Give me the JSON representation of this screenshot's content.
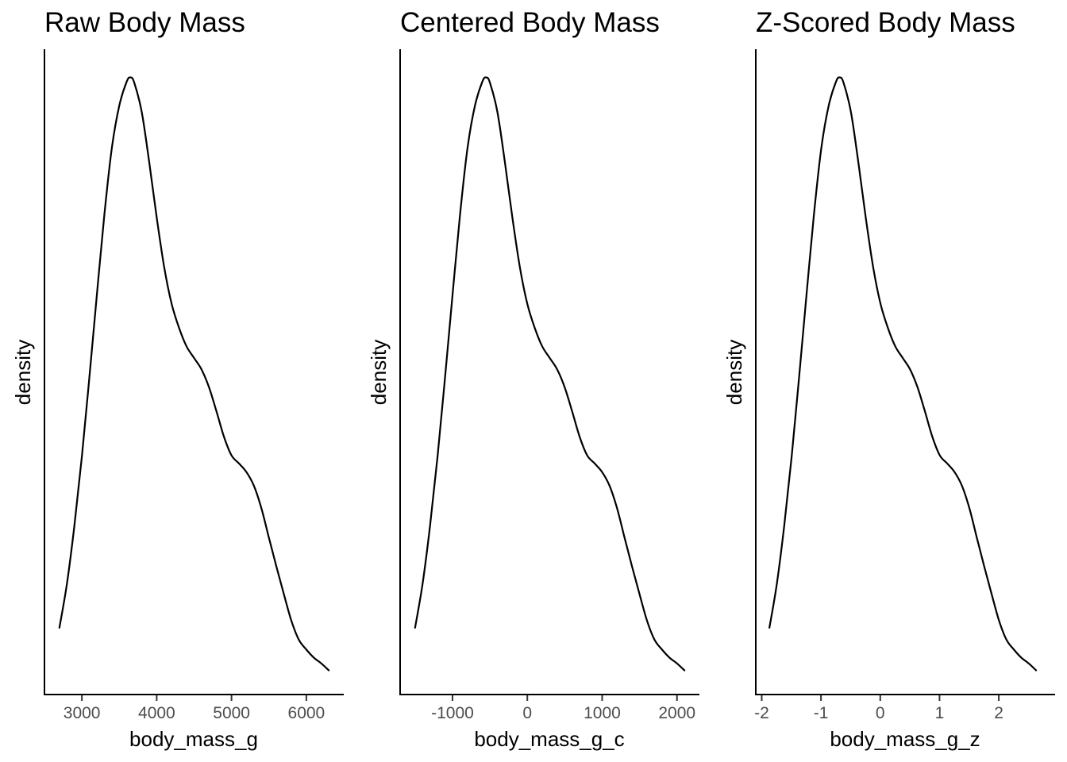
{
  "chart_data": [
    {
      "type": "line",
      "title": "Raw Body Mass",
      "xlabel": "body_mass_g",
      "ylabel": "density",
      "xlim": [
        2500,
        6500
      ],
      "xticks": [
        3000,
        4000,
        5000,
        6000
      ],
      "xtick_labels": [
        "3000",
        "4000",
        "5000",
        "6000"
      ],
      "y_ticks_shown": false,
      "grid": false,
      "series": [
        {
          "x": [
            2700,
            2800,
            2900,
            3000,
            3100,
            3200,
            3300,
            3400,
            3500,
            3600,
            3650,
            3700,
            3800,
            3900,
            4000,
            4100,
            4200,
            4300,
            4400,
            4500,
            4600,
            4700,
            4800,
            4900,
            5000,
            5100,
            5200,
            5300,
            5400,
            5500,
            5600,
            5700,
            5800,
            5900,
            6000,
            6100,
            6200,
            6300
          ],
          "y": [
            0.116,
            0.192,
            0.293,
            0.413,
            0.55,
            0.693,
            0.832,
            0.948,
            1.022,
            1.064,
            1.071,
            1.062,
            1.011,
            0.924,
            0.828,
            0.742,
            0.678,
            0.636,
            0.604,
            0.584,
            0.564,
            0.533,
            0.491,
            0.447,
            0.415,
            0.401,
            0.386,
            0.362,
            0.323,
            0.272,
            0.222,
            0.174,
            0.128,
            0.095,
            0.078,
            0.064,
            0.054,
            0.042
          ]
        }
      ]
    },
    {
      "type": "line",
      "title": "Centered Body Mass",
      "xlabel": "body_mass_g_c",
      "ylabel": "density",
      "xlim": [
        -1700,
        2300
      ],
      "xticks": [
        -1000,
        0,
        1000,
        2000
      ],
      "xtick_labels": [
        "-1000",
        "0",
        "1000",
        "2000"
      ],
      "y_ticks_shown": false,
      "grid": false,
      "series": [
        {
          "x": [
            -1500,
            -1400,
            -1300,
            -1200,
            -1100,
            -1000,
            -900,
            -800,
            -700,
            -600,
            -550,
            -500,
            -400,
            -300,
            -200,
            -100,
            0,
            100,
            200,
            300,
            400,
            500,
            600,
            700,
            800,
            900,
            1000,
            1100,
            1200,
            1300,
            1400,
            1500,
            1600,
            1700,
            1800,
            1900,
            2000,
            2100
          ],
          "y": [
            0.116,
            0.192,
            0.293,
            0.413,
            0.55,
            0.693,
            0.832,
            0.948,
            1.022,
            1.064,
            1.071,
            1.062,
            1.011,
            0.924,
            0.828,
            0.742,
            0.678,
            0.636,
            0.604,
            0.584,
            0.564,
            0.533,
            0.491,
            0.447,
            0.415,
            0.401,
            0.386,
            0.362,
            0.323,
            0.272,
            0.222,
            0.174,
            0.128,
            0.095,
            0.078,
            0.064,
            0.054,
            0.042
          ]
        }
      ]
    },
    {
      "type": "line",
      "title": "Z-Scored Body Mass",
      "xlabel": "body_mass_g_z",
      "ylabel": "density",
      "xlim": [
        -2.1,
        2.95
      ],
      "xticks": [
        -2,
        -1,
        0,
        1,
        2
      ],
      "xtick_labels": [
        "-2",
        "-1",
        "0",
        "1",
        "2"
      ],
      "y_ticks_shown": false,
      "grid": false,
      "series": [
        {
          "x": [
            -1.87,
            -1.745,
            -1.62,
            -1.495,
            -1.37,
            -1.245,
            -1.12,
            -0.995,
            -0.87,
            -0.745,
            -0.683,
            -0.62,
            -0.495,
            -0.37,
            -0.245,
            -0.12,
            0.005,
            0.13,
            0.255,
            0.38,
            0.505,
            0.63,
            0.755,
            0.88,
            1.005,
            1.13,
            1.255,
            1.38,
            1.505,
            1.63,
            1.755,
            1.88,
            2.005,
            2.13,
            2.255,
            2.38,
            2.505,
            2.63
          ],
          "y": [
            0.116,
            0.192,
            0.293,
            0.413,
            0.55,
            0.693,
            0.832,
            0.948,
            1.022,
            1.064,
            1.071,
            1.062,
            1.011,
            0.924,
            0.828,
            0.742,
            0.678,
            0.636,
            0.604,
            0.584,
            0.564,
            0.533,
            0.491,
            0.447,
            0.415,
            0.401,
            0.386,
            0.362,
            0.323,
            0.272,
            0.222,
            0.174,
            0.128,
            0.095,
            0.078,
            0.064,
            0.054,
            0.042
          ]
        }
      ]
    }
  ]
}
